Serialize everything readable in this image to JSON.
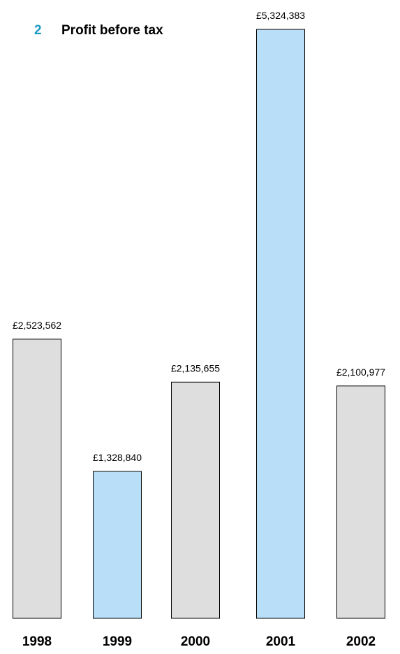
{
  "chart_data": {
    "type": "bar",
    "title_number": "2",
    "title": "Profit before tax",
    "categories": [
      "1998",
      "1999",
      "2000",
      "2001",
      "2002"
    ],
    "values": [
      2523562,
      1328840,
      2135655,
      5324383,
      2100977
    ],
    "value_labels": [
      "£2,523,562",
      "£1,328,840",
      "£2,135,655",
      "£5,324,383",
      "£2,100,977"
    ],
    "highlighted": [
      false,
      true,
      false,
      true,
      false
    ],
    "ylim": [
      0,
      5324383
    ],
    "grid": false,
    "legend": "none"
  },
  "colors": {
    "title_number": "#1a9bc4",
    "bar_default": "#dedede",
    "bar_highlight": "#b9dff8",
    "outline": "#000000"
  }
}
